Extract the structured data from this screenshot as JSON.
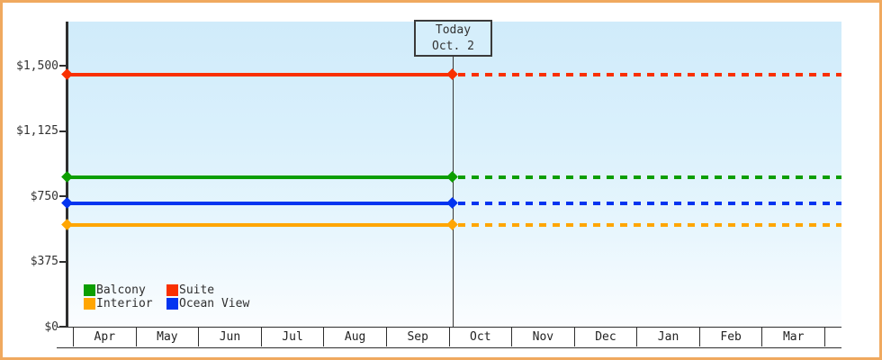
{
  "frame": {
    "border_color": "#f0a95f",
    "background": "#ffffff"
  },
  "today_box": {
    "line1": "Today",
    "line2": "Oct. 2"
  },
  "chart_data": {
    "type": "line",
    "title": "",
    "xlabel": "",
    "ylabel": "",
    "x_categories": [
      "Apr",
      "May",
      "Jun",
      "Jul",
      "Aug",
      "Sep",
      "Oct",
      "Nov",
      "Dec",
      "Jan",
      "Feb",
      "Mar"
    ],
    "ylim": [
      0,
      1500
    ],
    "y_ticks": [
      {
        "value": 0,
        "label": "$0"
      },
      {
        "value": 375,
        "label": "$375"
      },
      {
        "value": 750,
        "label": "$750"
      },
      {
        "value": 1125,
        "label": "$1,125"
      },
      {
        "value": 1500,
        "label": "$1,500"
      }
    ],
    "grid": false,
    "legend_position": "bottom-left",
    "today": {
      "month_index": 6,
      "day": 2,
      "days_in_month": 31,
      "label": "Today",
      "date_label": "Oct. 2"
    },
    "series": [
      {
        "name": "Balcony",
        "color": "#0d9e01",
        "value": 860,
        "style_before_today": "solid",
        "style_after_today": "dashed"
      },
      {
        "name": "Suite",
        "color": "#f93000",
        "value": 1450,
        "style_before_today": "solid",
        "style_after_today": "dashed"
      },
      {
        "name": "Interior",
        "color": "#ffa602",
        "value": 585,
        "style_before_today": "solid",
        "style_after_today": "dashed"
      },
      {
        "name": "Ocean View",
        "color": "#0334f0",
        "value": 710,
        "style_before_today": "solid",
        "style_after_today": "dashed"
      }
    ],
    "legend_order": [
      "Balcony",
      "Suite",
      "Interior",
      "Ocean View"
    ]
  }
}
